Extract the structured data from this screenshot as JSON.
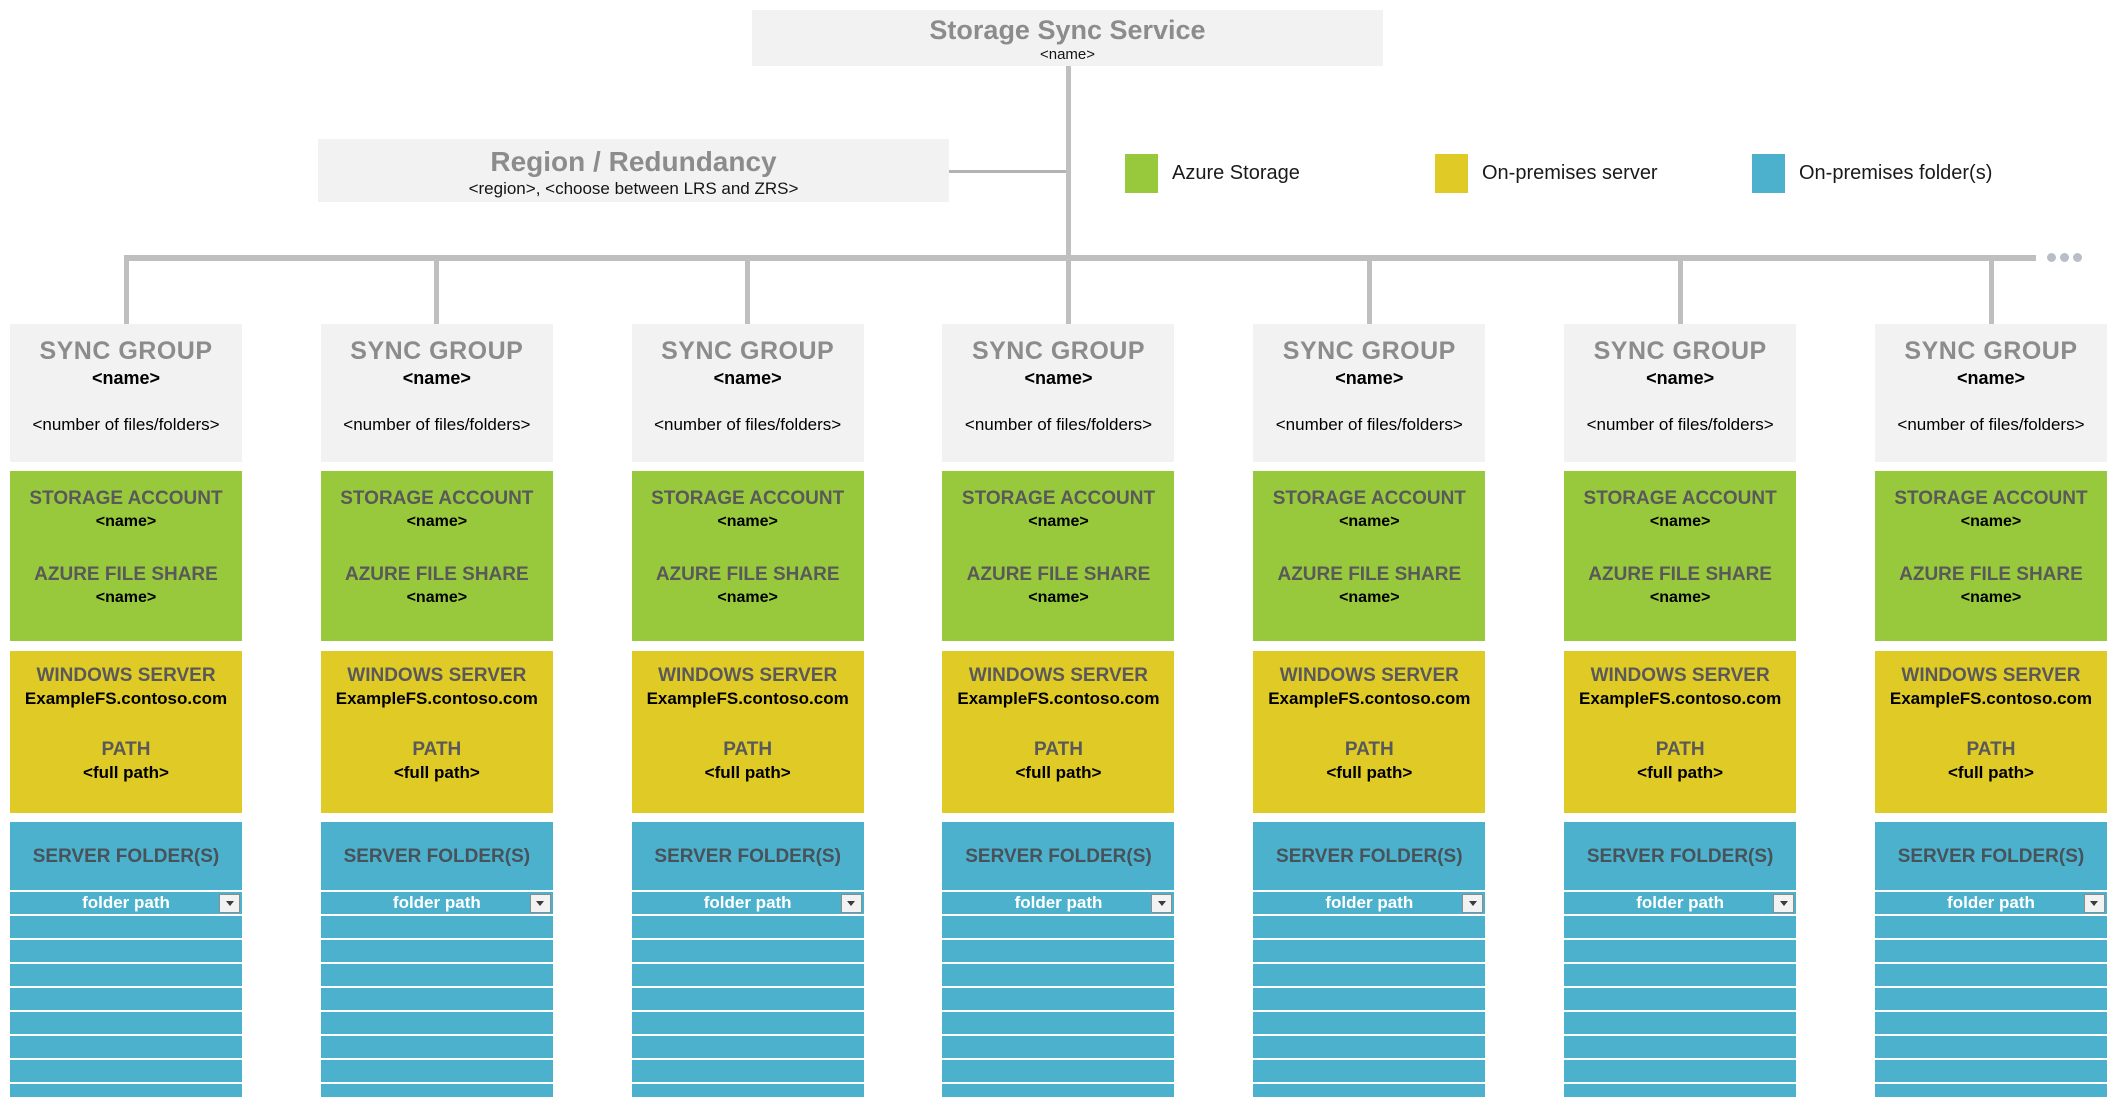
{
  "service": {
    "title": "Storage Sync Service",
    "name": "<name>"
  },
  "region": {
    "title": "Region / Redundancy",
    "subtitle": "<region>, <choose between LRS and ZRS>"
  },
  "legend": {
    "items": [
      {
        "label": "Azure Storage",
        "color": "#98C93C"
      },
      {
        "label": "On-premises server",
        "color": "#E0CA26"
      },
      {
        "label": "On-premises folder(s)",
        "color": "#4BB1CC"
      }
    ]
  },
  "colors": {
    "azure_storage": "#98C93C",
    "on_premises_server": "#E0CA26",
    "on_premises_folders": "#4BB1CC",
    "box_gray": "#F2F2F2",
    "connector_gray": "#BFBFBF"
  },
  "connector": {
    "overflow_dots": 3
  },
  "groups": [
    {
      "title": "SYNC GROUP",
      "name": "<name>",
      "count": "<number of files/folders>",
      "storage_account_label": "STORAGE ACCOUNT",
      "storage_account_name": "<name>",
      "file_share_label": "AZURE FILE SHARE",
      "file_share_name": "<name>",
      "server_label": "WINDOWS SERVER",
      "server_name": "ExampleFS.contoso.com",
      "path_label": "PATH",
      "path_value": "<full path>",
      "folders_label": "SERVER FOLDER(S)",
      "folder_path": "folder path",
      "empty_rows": 8
    },
    {
      "title": "SYNC GROUP",
      "name": "<name>",
      "count": "<number of files/folders>",
      "storage_account_label": "STORAGE ACCOUNT",
      "storage_account_name": "<name>",
      "file_share_label": "AZURE FILE SHARE",
      "file_share_name": "<name>",
      "server_label": "WINDOWS SERVER",
      "server_name": "ExampleFS.contoso.com",
      "path_label": "PATH",
      "path_value": "<full path>",
      "folders_label": "SERVER FOLDER(S)",
      "folder_path": "folder path",
      "empty_rows": 8
    },
    {
      "title": "SYNC GROUP",
      "name": "<name>",
      "count": "<number of files/folders>",
      "storage_account_label": "STORAGE ACCOUNT",
      "storage_account_name": "<name>",
      "file_share_label": "AZURE FILE SHARE",
      "file_share_name": "<name>",
      "server_label": "WINDOWS SERVER",
      "server_name": "ExampleFS.contoso.com",
      "path_label": "PATH",
      "path_value": "<full path>",
      "folders_label": "SERVER FOLDER(S)",
      "folder_path": "folder path",
      "empty_rows": 8
    },
    {
      "title": "SYNC GROUP",
      "name": "<name>",
      "count": "<number of files/folders>",
      "storage_account_label": "STORAGE ACCOUNT",
      "storage_account_name": "<name>",
      "file_share_label": "AZURE FILE SHARE",
      "file_share_name": "<name>",
      "server_label": "WINDOWS SERVER",
      "server_name": "ExampleFS.contoso.com",
      "path_label": "PATH",
      "path_value": "<full path>",
      "folders_label": "SERVER FOLDER(S)",
      "folder_path": "folder path",
      "empty_rows": 8
    },
    {
      "title": "SYNC GROUP",
      "name": "<name>",
      "count": "<number of files/folders>",
      "storage_account_label": "STORAGE ACCOUNT",
      "storage_account_name": "<name>",
      "file_share_label": "AZURE FILE SHARE",
      "file_share_name": "<name>",
      "server_label": "WINDOWS SERVER",
      "server_name": "ExampleFS.contoso.com",
      "path_label": "PATH",
      "path_value": "<full path>",
      "folders_label": "SERVER FOLDER(S)",
      "folder_path": "folder path",
      "empty_rows": 8
    },
    {
      "title": "SYNC GROUP",
      "name": "<name>",
      "count": "<number of files/folders>",
      "storage_account_label": "STORAGE ACCOUNT",
      "storage_account_name": "<name>",
      "file_share_label": "AZURE FILE SHARE",
      "file_share_name": "<name>",
      "server_label": "WINDOWS SERVER",
      "server_name": "ExampleFS.contoso.com",
      "path_label": "PATH",
      "path_value": "<full path>",
      "folders_label": "SERVER FOLDER(S)",
      "folder_path": "folder path",
      "empty_rows": 8
    },
    {
      "title": "SYNC GROUP",
      "name": "<name>",
      "count": "<number of files/folders>",
      "storage_account_label": "STORAGE ACCOUNT",
      "storage_account_name": "<name>",
      "file_share_label": "AZURE FILE SHARE",
      "file_share_name": "<name>",
      "server_label": "WINDOWS SERVER",
      "server_name": "ExampleFS.contoso.com",
      "path_label": "PATH",
      "path_value": "<full path>",
      "folders_label": "SERVER FOLDER(S)",
      "folder_path": "folder path",
      "empty_rows": 8
    }
  ]
}
